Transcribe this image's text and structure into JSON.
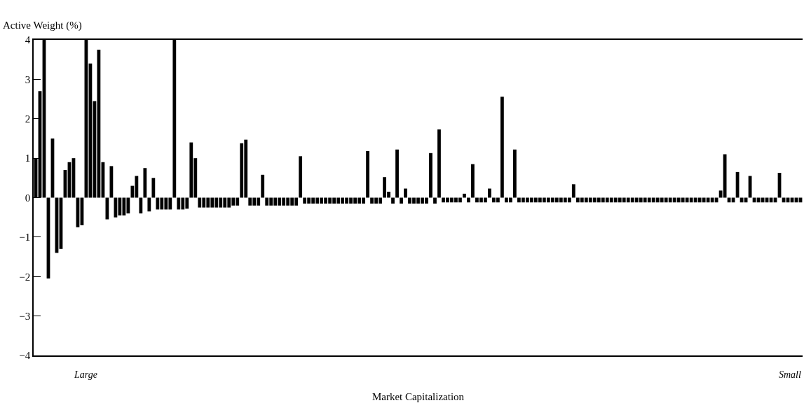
{
  "chart_data": {
    "type": "bar",
    "ylabel": "Active Weight (%)",
    "xlabel": "Market Capitalization",
    "annotations": [
      "Large",
      "Small"
    ],
    "categories": [
      null,
      null,
      null,
      null,
      null,
      null,
      null,
      null,
      null,
      null,
      null,
      null,
      null,
      null,
      null,
      null,
      null,
      null,
      null,
      null,
      null,
      null,
      null,
      null,
      null,
      null,
      null,
      null,
      null,
      null,
      null,
      null,
      null,
      null,
      null,
      null,
      null,
      null,
      null,
      null,
      null,
      null,
      null,
      null,
      null,
      null,
      null,
      null,
      null,
      null,
      null,
      null,
      null,
      null,
      null,
      null,
      null,
      null,
      null,
      null,
      null,
      null,
      null,
      null,
      null,
      null,
      null,
      null,
      null,
      null,
      null,
      null,
      null,
      null,
      null,
      null,
      null,
      null,
      null,
      null,
      null,
      null,
      null,
      null,
      null,
      null,
      null,
      null,
      null,
      null,
      null,
      null,
      null,
      null,
      null,
      null,
      null,
      null,
      null,
      null,
      null,
      null,
      null,
      null,
      null,
      null,
      null,
      null,
      null,
      null,
      null,
      null,
      null,
      null,
      null,
      null,
      null,
      null,
      null,
      null,
      null,
      null,
      null,
      null,
      null,
      null,
      null,
      null,
      null,
      null,
      null,
      null,
      null,
      null,
      null,
      null,
      null,
      null,
      null,
      null,
      null,
      null,
      null,
      null,
      null,
      null,
      null,
      null,
      null,
      null,
      null,
      null,
      null,
      null,
      null,
      null,
      null,
      null,
      null,
      null,
      null,
      null,
      null,
      null,
      null,
      null,
      null,
      null,
      null,
      null,
      null,
      null,
      null,
      null,
      null,
      null,
      null,
      null,
      null,
      null,
      null,
      null,
      null
    ],
    "values": [
      1.0,
      2.7,
      4,
      -2.05,
      1.5,
      -1.4,
      -1.3,
      0.7,
      0.9,
      1.0,
      -0.75,
      -0.7,
      4,
      3.4,
      2.45,
      3.75,
      0.9,
      -0.55,
      0.8,
      -0.5,
      -0.45,
      -0.45,
      -0.4,
      0.3,
      0.55,
      -0.4,
      0.75,
      -0.35,
      0.5,
      -0.3,
      -0.3,
      -0.3,
      -0.3,
      4,
      -0.3,
      -0.3,
      -0.28,
      1.4,
      1.0,
      -0.25,
      -0.25,
      -0.25,
      -0.25,
      -0.25,
      -0.25,
      -0.25,
      -0.25,
      -0.2,
      -0.2,
      1.38,
      1.47,
      -0.2,
      -0.2,
      -0.2,
      0.58,
      -0.2,
      -0.2,
      -0.2,
      -0.2,
      -0.2,
      -0.2,
      -0.2,
      -0.2,
      1.05,
      -0.15,
      -0.15,
      -0.15,
      -0.15,
      -0.15,
      -0.15,
      -0.15,
      -0.15,
      -0.15,
      -0.15,
      -0.15,
      -0.15,
      -0.15,
      -0.15,
      -0.15,
      1.18,
      -0.15,
      -0.15,
      -0.15,
      0.52,
      0.15,
      -0.15,
      1.22,
      -0.15,
      0.23,
      -0.15,
      -0.15,
      -0.15,
      -0.15,
      -0.15,
      1.13,
      -0.15,
      1.73,
      -0.12,
      -0.12,
      -0.12,
      -0.12,
      -0.12,
      0.1,
      -0.12,
      0.85,
      -0.12,
      -0.12,
      -0.12,
      0.23,
      -0.12,
      -0.12,
      2.56,
      -0.12,
      -0.12,
      1.22,
      -0.12,
      -0.12,
      -0.12,
      -0.12,
      -0.12,
      -0.12,
      -0.12,
      -0.12,
      -0.12,
      -0.12,
      -0.12,
      -0.12,
      -0.12,
      0.34,
      -0.12,
      -0.12,
      -0.12,
      -0.12,
      -0.12,
      -0.12,
      -0.12,
      -0.12,
      -0.12,
      -0.12,
      -0.12,
      -0.12,
      -0.12,
      -0.12,
      -0.12,
      -0.12,
      -0.12,
      -0.12,
      -0.12,
      -0.12,
      -0.12,
      -0.12,
      -0.12,
      -0.12,
      -0.12,
      -0.12,
      -0.12,
      -0.12,
      -0.12,
      -0.12,
      -0.12,
      -0.12,
      -0.12,
      -0.12,
      0.18,
      1.1,
      -0.12,
      -0.12,
      0.65,
      -0.12,
      -0.12,
      0.55,
      -0.12,
      -0.12,
      -0.12,
      -0.12,
      -0.12,
      -0.12,
      0.63,
      -0.12,
      -0.12,
      -0.12,
      -0.12,
      -0.12
    ],
    "color": "#000000",
    "ylim": [
      -4,
      4
    ],
    "yticks": [
      -4,
      -3,
      -2,
      -1,
      0,
      1,
      2,
      3,
      4
    ],
    "grid": false
  }
}
